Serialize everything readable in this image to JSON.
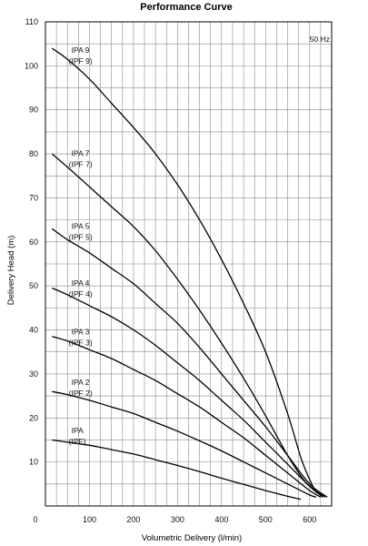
{
  "chart_data": {
    "type": "line",
    "title": "Performance Curve",
    "xlabel": "Volumetric Delivery (l/min)",
    "ylabel": "Delivery Head (m)",
    "annotation": "50 Hz",
    "xlim": [
      0,
      650
    ],
    "ylim": [
      0,
      110
    ],
    "x_ticks": [
      100,
      200,
      300,
      400,
      500,
      600
    ],
    "y_ticks": [
      10,
      20,
      30,
      40,
      50,
      60,
      70,
      80,
      90,
      100,
      110
    ],
    "origin_label": "0",
    "grid": true,
    "series": [
      {
        "name": "IPA 9 (IPF 9)",
        "label_lines": [
          "IPA 9",
          "(IPF 9)"
        ],
        "label_at": [
          53,
          103
        ],
        "x": [
          15,
          50,
          100,
          150,
          200,
          250,
          300,
          350,
          400,
          450,
          500,
          550,
          580,
          600,
          615
        ],
        "y": [
          104,
          101.5,
          97,
          91.5,
          86,
          80,
          73,
          65,
          56,
          46,
          35,
          21,
          11,
          6,
          3
        ]
      },
      {
        "name": "IPA 7 (IPF 7)",
        "label_lines": [
          "IPA 7",
          "(IPF 7)"
        ],
        "label_at": [
          53,
          79.5
        ],
        "x": [
          15,
          50,
          100,
          150,
          200,
          250,
          300,
          350,
          400,
          450,
          500,
          550,
          590,
          630
        ],
        "y": [
          80,
          77,
          72.5,
          68,
          63.5,
          58,
          51.5,
          44.5,
          37,
          29,
          20.5,
          11.5,
          5.5,
          2
        ]
      },
      {
        "name": "IPA 5 (IPF 5)",
        "label_lines": [
          "IPA 5",
          "(IPF 5)"
        ],
        "label_at": [
          53,
          63
        ],
        "x": [
          15,
          50,
          100,
          150,
          200,
          250,
          300,
          350,
          400,
          450,
          500,
          550,
          600,
          640
        ],
        "y": [
          63,
          60.5,
          57.5,
          54,
          50.5,
          46,
          41.5,
          36,
          30,
          24,
          18,
          11.5,
          5,
          2
        ]
      },
      {
        "name": "IPA 4 (IPF 4)",
        "label_lines": [
          "IPA 4",
          "(IPF 4)"
        ],
        "label_at": [
          53,
          50
        ],
        "x": [
          15,
          50,
          100,
          150,
          200,
          250,
          300,
          350,
          400,
          450,
          500,
          550,
          600,
          635
        ],
        "y": [
          49.5,
          48,
          45.5,
          43,
          40,
          36.5,
          32.5,
          28.5,
          24,
          19.5,
          14.5,
          9.5,
          4.5,
          2
        ]
      },
      {
        "name": "IPA 3 (IPF 3)",
        "label_lines": [
          "IPA 3",
          "(IPF 3)"
        ],
        "label_at": [
          53,
          39
        ],
        "x": [
          15,
          50,
          100,
          150,
          200,
          250,
          300,
          350,
          400,
          450,
          500,
          550,
          600,
          625
        ],
        "y": [
          38.5,
          37.5,
          35.5,
          33.5,
          31,
          28.5,
          25.5,
          22.5,
          19,
          15.5,
          11.5,
          7.5,
          3.5,
          2
        ]
      },
      {
        "name": "IPA 2 (IPF 2)",
        "label_lines": [
          "IPA 2",
          "(IPF 2)"
        ],
        "label_at": [
          53,
          27.5
        ],
        "x": [
          15,
          50,
          100,
          150,
          200,
          250,
          300,
          350,
          400,
          450,
          500,
          550,
          600,
          615
        ],
        "y": [
          26,
          25.3,
          24,
          22.5,
          21,
          19,
          17,
          14.8,
          12.5,
          10,
          7.5,
          5,
          2.5,
          2
        ]
      },
      {
        "name": "IPA (IPF)",
        "label_lines": [
          "IPA",
          "(IPF)"
        ],
        "label_at": [
          53,
          16.5
        ],
        "x": [
          15,
          50,
          100,
          150,
          200,
          250,
          300,
          350,
          400,
          450,
          500,
          550,
          580
        ],
        "y": [
          15,
          14.5,
          13.8,
          12.8,
          11.8,
          10.5,
          9.2,
          7.8,
          6.3,
          4.9,
          3.5,
          2.2,
          1.5
        ]
      }
    ]
  }
}
